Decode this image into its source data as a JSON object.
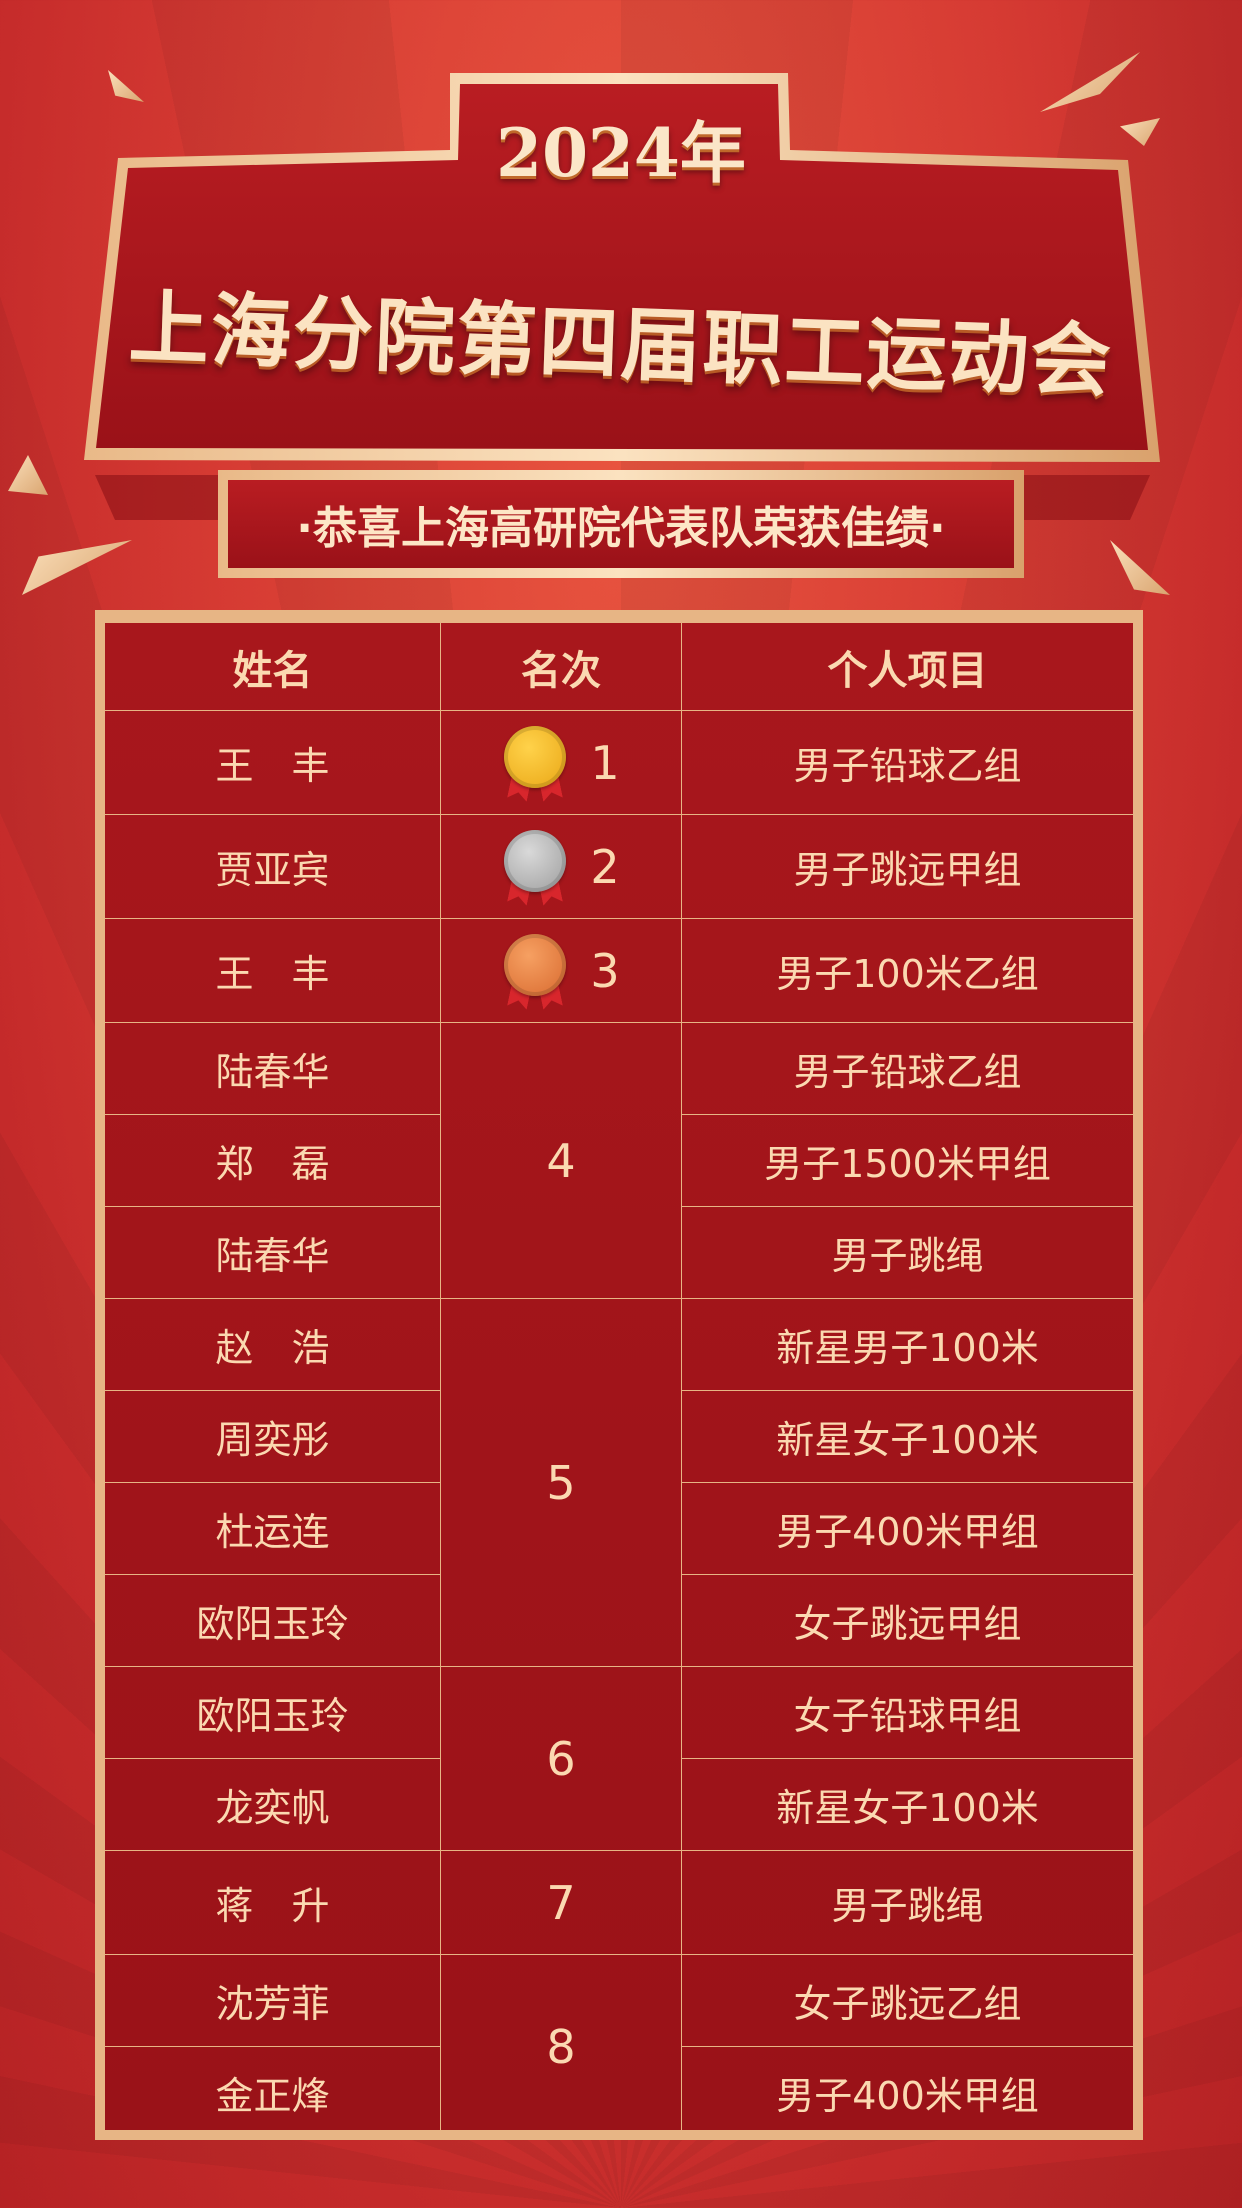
{
  "header": {
    "year": "2024年",
    "title": "上海分院第四届职工运动会",
    "subtitle": "·恭喜上海高研院代表队荣获佳绩·"
  },
  "colors": {
    "gold": "#e7b585",
    "text": "#fbd9b1",
    "cell_bg": "#a3151b",
    "page_bg": "#d63b33"
  },
  "table": {
    "headers": [
      "姓名",
      "名次",
      "个人项目"
    ],
    "rows": [
      {
        "name": "王　丰",
        "rank": "1",
        "medal": "gold",
        "event": "男子铅球乙组"
      },
      {
        "name": "贾亚宾",
        "rank": "2",
        "medal": "silver",
        "event": "男子跳远甲组"
      },
      {
        "name": "王　丰",
        "rank": "3",
        "medal": "bronze",
        "event": "男子100米乙组"
      },
      {
        "name": "陆春华",
        "rank": "4",
        "event": "男子铅球乙组"
      },
      {
        "name": "郑　磊",
        "rank": "4",
        "event": "男子1500米甲组"
      },
      {
        "name": "陆春华",
        "rank": "4",
        "event": "男子跳绳"
      },
      {
        "name": "赵　浩",
        "rank": "5",
        "event": "新星男子100米"
      },
      {
        "name": "周奕彤",
        "rank": "5",
        "event": "新星女子100米"
      },
      {
        "name": "杜运连",
        "rank": "5",
        "event": "男子400米甲组"
      },
      {
        "name": "欧阳玉玲",
        "rank": "5",
        "event": "女子跳远甲组"
      },
      {
        "name": "欧阳玉玲",
        "rank": "6",
        "event": "女子铅球甲组"
      },
      {
        "name": "龙奕帆",
        "rank": "6",
        "event": "新星女子100米"
      },
      {
        "name": "蒋　升",
        "rank": "7",
        "event": "男子跳绳"
      },
      {
        "name": "沈芳菲",
        "rank": "8",
        "event": "女子跳远乙组"
      },
      {
        "name": "金正烽",
        "rank": "8",
        "event": "男子400米甲组"
      }
    ]
  }
}
